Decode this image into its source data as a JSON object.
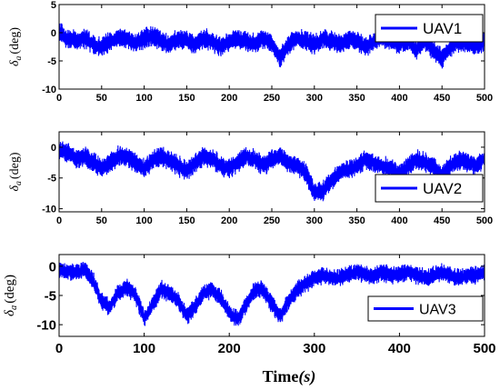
{
  "figure": {
    "xlabel_main": "Time",
    "xlabel_unit": "(s)"
  },
  "chart_data": [
    {
      "type": "line",
      "title": "",
      "ylabel_symbol": "δ",
      "ylabel_sub": "a",
      "ylabel_unit": "(deg)",
      "xlim": [
        0,
        500
      ],
      "ylim": [
        -10,
        5
      ],
      "xticks": [
        0,
        50,
        100,
        150,
        200,
        250,
        300,
        350,
        400,
        450,
        500
      ],
      "xtick_labels": [
        "0",
        "50",
        "100",
        "150",
        "200",
        "250",
        "300",
        "350",
        "400",
        "450",
        "500"
      ],
      "yticks": [
        5,
        0,
        -5,
        -10
      ],
      "ytick_labels": [
        "5",
        "0",
        "-5",
        "-10"
      ],
      "legend": "top-right",
      "grid": false,
      "color": "#0000ff",
      "series": [
        {
          "name": "UAV1",
          "amplitude": 1.4,
          "x": [
            0,
            10,
            20,
            30,
            40,
            50,
            60,
            70,
            80,
            90,
            100,
            110,
            120,
            130,
            140,
            150,
            160,
            170,
            180,
            190,
            200,
            210,
            220,
            230,
            240,
            250,
            260,
            270,
            280,
            290,
            300,
            310,
            320,
            330,
            340,
            350,
            360,
            370,
            380,
            390,
            400,
            410,
            420,
            430,
            440,
            450,
            460,
            470,
            480,
            490,
            500
          ],
          "y": [
            0,
            -1,
            -1.5,
            -1,
            -2,
            -2.5,
            -1.5,
            -1,
            -1.2,
            -1.8,
            -1,
            -0.5,
            -1.5,
            -2,
            -1,
            -1.5,
            -2,
            -1,
            -1.5,
            -2.5,
            -1.5,
            -1,
            -1.5,
            -2,
            -1,
            -2,
            -4.5,
            -2,
            -1,
            -1.5,
            -2,
            -1,
            -1.5,
            -2,
            -1,
            -1.5,
            -2.5,
            -1.5,
            -1,
            -1.5,
            -2,
            -1.5,
            -3,
            -1.5,
            -3,
            -4.5,
            -2.5,
            -1.5,
            -2,
            -2.5,
            -1.5
          ]
        }
      ]
    },
    {
      "type": "line",
      "title": "",
      "ylabel_symbol": "δ",
      "ylabel_sub": "a",
      "ylabel_unit": "(deg)",
      "xlim": [
        0,
        500
      ],
      "ylim": [
        -10.5,
        2.5
      ],
      "xticks": [
        0,
        50,
        100,
        150,
        200,
        250,
        300,
        350,
        400,
        450,
        500
      ],
      "xtick_labels": [
        "0",
        "50",
        "100",
        "150",
        "200",
        "250",
        "300",
        "350",
        "400",
        "450",
        "500"
      ],
      "yticks": [
        0,
        -5,
        -10
      ],
      "ytick_labels": [
        "0",
        "-5",
        "-10"
      ],
      "legend": "bottom-right",
      "grid": false,
      "color": "#0000ff",
      "series": [
        {
          "name": "UAV2",
          "amplitude": 1.3,
          "x": [
            0,
            10,
            20,
            30,
            40,
            50,
            60,
            70,
            80,
            90,
            100,
            110,
            120,
            130,
            140,
            150,
            160,
            170,
            180,
            190,
            200,
            210,
            220,
            230,
            240,
            250,
            260,
            270,
            280,
            290,
            300,
            310,
            320,
            330,
            340,
            350,
            360,
            370,
            380,
            390,
            400,
            410,
            420,
            430,
            440,
            450,
            460,
            470,
            480,
            490,
            500
          ],
          "y": [
            -0.5,
            -1,
            -2,
            -1.5,
            -2.5,
            -3.5,
            -2.5,
            -1.5,
            -1.5,
            -2.5,
            -3.5,
            -2,
            -1.5,
            -2,
            -3,
            -4,
            -2.5,
            -1.5,
            -2,
            -3,
            -3.5,
            -2.5,
            -1.5,
            -2,
            -3,
            -2,
            -1.5,
            -2.5,
            -3,
            -4,
            -7.5,
            -7,
            -5.5,
            -4,
            -3.5,
            -3,
            -2,
            -2.5,
            -3,
            -3.5,
            -4.5,
            -3,
            -2,
            -2.5,
            -3,
            -4.5,
            -3,
            -2,
            -2.5,
            -3,
            -2
          ]
        }
      ]
    },
    {
      "type": "line",
      "title": "",
      "ylabel_symbol": "δ",
      "ylabel_sub": "a",
      "ylabel_unit": "(deg)",
      "xlim": [
        0,
        500
      ],
      "ylim": [
        -12,
        2
      ],
      "xticks": [
        0,
        100,
        200,
        300,
        400,
        500
      ],
      "xtick_labels": [
        "0",
        "100",
        "200",
        "300",
        "400",
        "500"
      ],
      "yticks": [
        0,
        -5,
        -10
      ],
      "ytick_labels": [
        "0",
        "-5",
        "-10"
      ],
      "legend": "bottom-right",
      "grid": false,
      "color": "#0000ff",
      "series": [
        {
          "name": "UAV3",
          "amplitude": 1.2,
          "x": [
            0,
            10,
            20,
            30,
            40,
            50,
            60,
            70,
            80,
            90,
            100,
            110,
            120,
            130,
            140,
            150,
            160,
            170,
            180,
            190,
            200,
            210,
            220,
            230,
            240,
            250,
            260,
            270,
            280,
            290,
            300,
            310,
            320,
            330,
            340,
            350,
            360,
            370,
            380,
            390,
            400,
            410,
            420,
            430,
            440,
            450,
            460,
            470,
            480,
            490,
            500
          ],
          "y": [
            -0.5,
            -1,
            -1,
            -0.5,
            -2.5,
            -6,
            -7,
            -4.5,
            -3.5,
            -5,
            -9,
            -6.5,
            -4,
            -4.5,
            -6,
            -8.5,
            -7,
            -4.5,
            -4,
            -5.5,
            -8,
            -9,
            -6.5,
            -4,
            -4,
            -6.5,
            -8.5,
            -6,
            -4,
            -3,
            -2,
            -1.5,
            -2,
            -2,
            -1.5,
            -1,
            -1.5,
            -1.5,
            -1,
            -1.5,
            -1.5,
            -1,
            -1.5,
            -2,
            -1.5,
            -1,
            -1.5,
            -2,
            -1.5,
            -1.5,
            -1
          ]
        }
      ]
    }
  ]
}
